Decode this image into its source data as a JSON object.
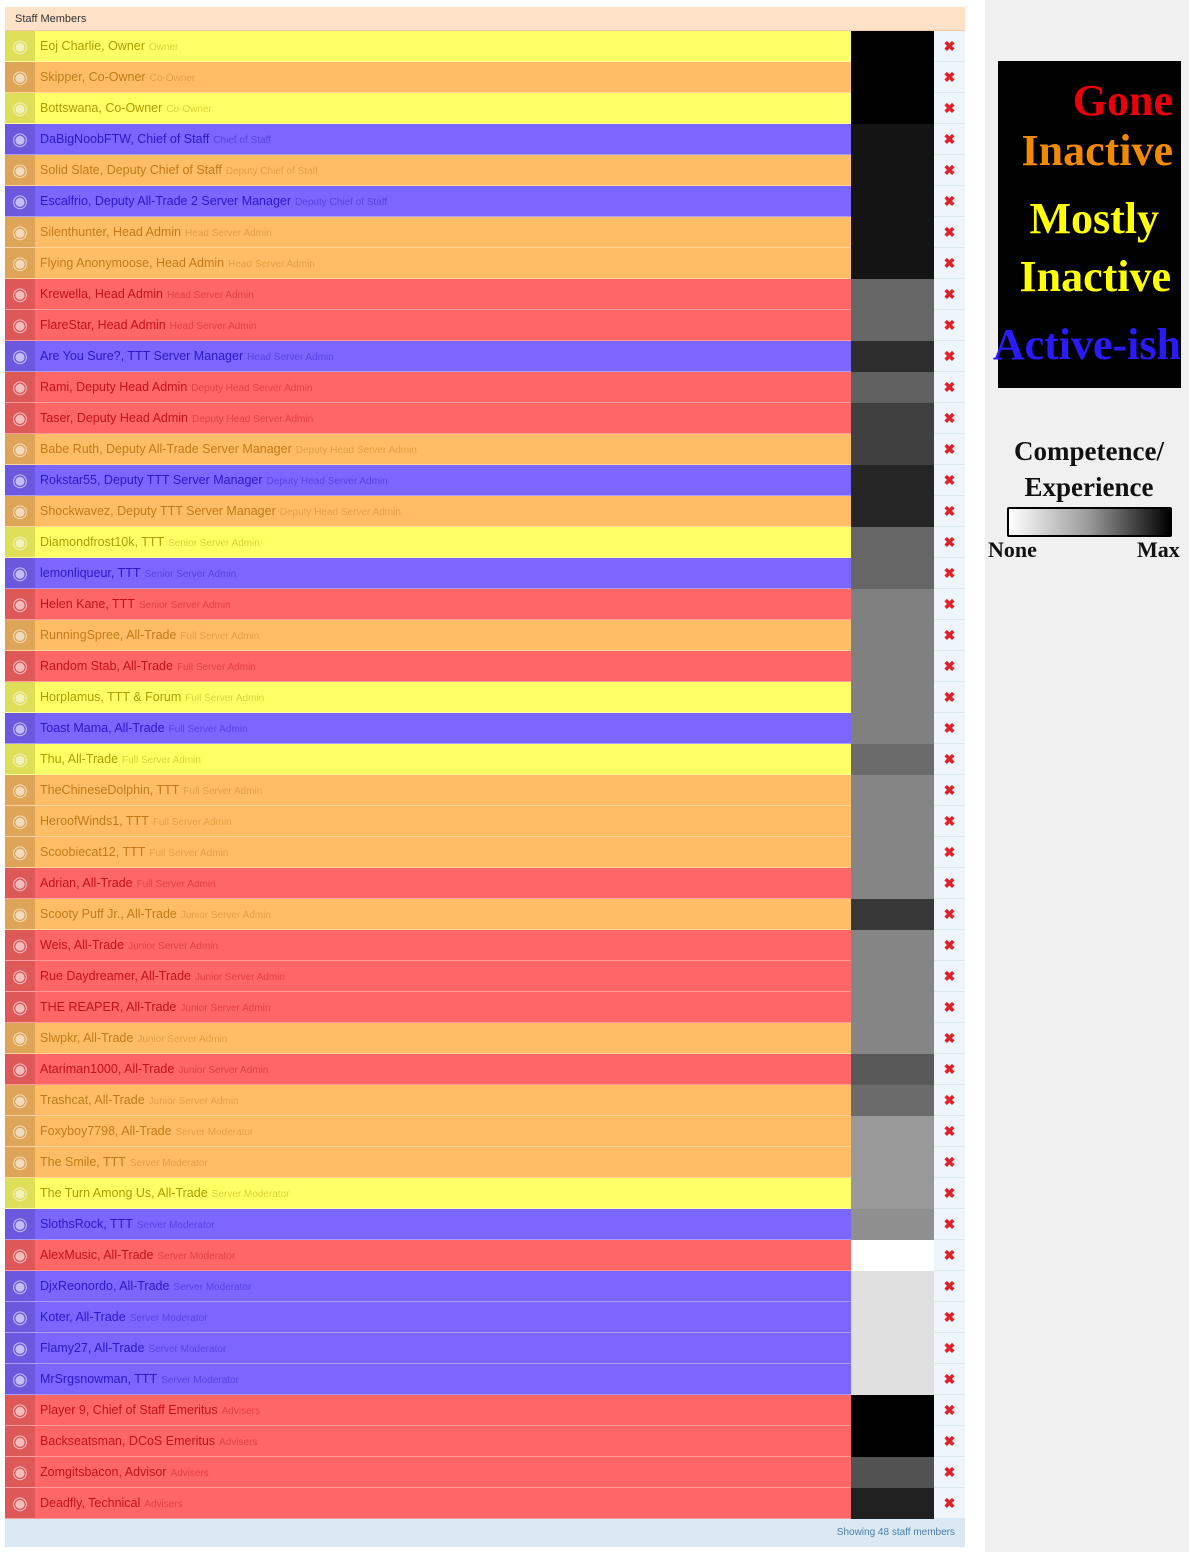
{
  "panel": {
    "title": "Staff Members",
    "footer": "Showing 48 staff members"
  },
  "status_colors": {
    "gone": "#ff6666",
    "inactive": "#ffbe66",
    "mostly": "#ffff66",
    "active": "#7b66ff"
  },
  "status_text_colors": {
    "gone": "#c2131a",
    "inactive": "#c47a18",
    "mostly": "#aaa000",
    "active": "#2b18c8"
  },
  "legend": {
    "gone": "Gone",
    "inactive": "Inactive",
    "mostly_line1": "Mostly",
    "mostly_line2": "Inactive",
    "active": "Active-ish",
    "competence_line1": "Competence/",
    "competence_line2": "Experience",
    "scale_min": "None",
    "scale_max": "Max"
  },
  "delete_icon": "close-icon",
  "staff": [
    {
      "name": "Eoj Charlie, Owner",
      "rank": "Owner",
      "status": "mostly",
      "competence": 1.0
    },
    {
      "name": "Skipper, Co-Owner",
      "rank": "Co-Owner",
      "status": "inactive",
      "competence": 1.0
    },
    {
      "name": "Bottswana, Co-Owner",
      "rank": "Co-Owner",
      "status": "mostly",
      "competence": 1.0
    },
    {
      "name": "DaBigNoobFTW, Chief of Staff",
      "rank": "Chief of Staff",
      "status": "active",
      "competence": 0.92
    },
    {
      "name": "Solid Slate, Deputy Chief of Staff",
      "rank": "Deputy Chief of Staff",
      "status": "inactive",
      "competence": 0.92
    },
    {
      "name": "Escalfrio, Deputy All-Trade 2 Server Manager",
      "rank": "Deputy Chief of Staff",
      "status": "active",
      "competence": 0.92
    },
    {
      "name": "Silenthunter, Head Admin",
      "rank": "Head Server Admin",
      "status": "inactive",
      "competence": 0.92
    },
    {
      "name": "Flying Anonymoose, Head Admin",
      "rank": "Head Server Admin",
      "status": "inactive",
      "competence": 0.92
    },
    {
      "name": "Krewella, Head Admin",
      "rank": "Head Server Admin",
      "status": "gone",
      "competence": 0.6
    },
    {
      "name": "FlareStar, Head Admin",
      "rank": "Head Server Admin",
      "status": "gone",
      "competence": 0.6
    },
    {
      "name": "Are You Sure?, TTT Server Manager",
      "rank": "Head Server Admin",
      "status": "active",
      "competence": 0.82
    },
    {
      "name": "Rami, Deputy Head Admin",
      "rank": "Deputy Head Server Admin",
      "status": "gone",
      "competence": 0.62
    },
    {
      "name": "Taser, Deputy Head Admin",
      "rank": "Deputy Head Server Admin",
      "status": "gone",
      "competence": 0.75
    },
    {
      "name": "Babe Ruth, Deputy All-Trade Server Manager",
      "rank": "Deputy Head Server Admin",
      "status": "inactive",
      "competence": 0.75
    },
    {
      "name": "Rokstar55, Deputy TTT Server Manager",
      "rank": "Deputy Head Server Admin",
      "status": "active",
      "competence": 0.85
    },
    {
      "name": "Shockwavez, Deputy TTT Server Manager",
      "rank": "Deputy Head Server Admin",
      "status": "inactive",
      "competence": 0.85
    },
    {
      "name": "Diamondfrost10k, TTT",
      "rank": "Senior Server Admin",
      "status": "mostly",
      "competence": 0.6
    },
    {
      "name": "lemonliqueur, TTT",
      "rank": "Senior Server Admin",
      "status": "active",
      "competence": 0.6
    },
    {
      "name": "Helen Kane, TTT",
      "rank": "Senior Server Admin",
      "status": "gone",
      "competence": 0.5
    },
    {
      "name": "RunningSpree, All-Trade",
      "rank": "Full Server Admin",
      "status": "inactive",
      "competence": 0.5
    },
    {
      "name": "Random Stab, All-Trade",
      "rank": "Full Server Admin",
      "status": "gone",
      "competence": 0.5
    },
    {
      "name": "Horplamus, TTT & Forum",
      "rank": "Full Server Admin",
      "status": "mostly",
      "competence": 0.5
    },
    {
      "name": "Toast Mama, All-Trade",
      "rank": "Full Server Admin",
      "status": "active",
      "competence": 0.5
    },
    {
      "name": "Thu, All-Trade",
      "rank": "Full Server Admin",
      "status": "mostly",
      "competence": 0.58
    },
    {
      "name": "TheChineseDolphin, TTT",
      "rank": "Full Server Admin",
      "status": "inactive",
      "competence": 0.48
    },
    {
      "name": "HeroofWinds1, TTT",
      "rank": "Full Server Admin",
      "status": "inactive",
      "competence": 0.48
    },
    {
      "name": "Scoobiecat12, TTT",
      "rank": "Full Server Admin",
      "status": "inactive",
      "competence": 0.48
    },
    {
      "name": "Adrian, All-Trade",
      "rank": "Full Server Admin",
      "status": "gone",
      "competence": 0.48
    },
    {
      "name": "Scooty Puff Jr., All-Trade",
      "rank": "Junior Server Admin",
      "status": "inactive",
      "competence": 0.78
    },
    {
      "name": "Weis, All-Trade",
      "rank": "Junior Server Admin",
      "status": "gone",
      "competence": 0.48
    },
    {
      "name": "Rue Daydreamer, All-Trade",
      "rank": "Junior Server Admin",
      "status": "gone",
      "competence": 0.48
    },
    {
      "name": "THE REAPER, All-Trade",
      "rank": "Junior Server Admin",
      "status": "gone",
      "competence": 0.48
    },
    {
      "name": "Slwpkr, All-Trade",
      "rank": "Junior Server Admin",
      "status": "inactive",
      "competence": 0.48
    },
    {
      "name": "Atariman1000, All-Trade",
      "rank": "Junior Server Admin",
      "status": "gone",
      "competence": 0.65
    },
    {
      "name": "Trashcat, All-Trade",
      "rank": "Junior Server Admin",
      "status": "inactive",
      "competence": 0.58
    },
    {
      "name": "Foxyboy7798, All-Trade",
      "rank": "Server Moderator",
      "status": "inactive",
      "competence": 0.4
    },
    {
      "name": "The Smile, TTT",
      "rank": "Server Moderator",
      "status": "inactive",
      "competence": 0.4
    },
    {
      "name": "The Turn Among Us, All-Trade",
      "rank": "Server Moderator",
      "status": "mostly",
      "competence": 0.4
    },
    {
      "name": "SlothsRock, TTT",
      "rank": "Server Moderator",
      "status": "active",
      "competence": 0.44
    },
    {
      "name": "AlexMusic, All-Trade",
      "rank": "Server Moderator",
      "status": "gone",
      "competence": 0.0
    },
    {
      "name": "DjxReonordo, All-Trade",
      "rank": "Server Moderator",
      "status": "active",
      "competence": 0.12
    },
    {
      "name": "Koter, All-Trade",
      "rank": "Server Moderator",
      "status": "active",
      "competence": 0.12
    },
    {
      "name": "Flamy27, All-Trade",
      "rank": "Server Moderator",
      "status": "active",
      "competence": 0.12
    },
    {
      "name": "MrSrgsnowman, TTT",
      "rank": "Server Moderator",
      "status": "active",
      "competence": 0.12
    },
    {
      "name": "Player 9, Chief of Staff Emeritus",
      "rank": "Advisers",
      "status": "gone",
      "competence": 1.0
    },
    {
      "name": "Backseatsman, DCoS Emeritus",
      "rank": "Advisers",
      "status": "gone",
      "competence": 1.0
    },
    {
      "name": "Zomgitsbacon, Advisor",
      "rank": "Advisers",
      "status": "gone",
      "competence": 0.68
    },
    {
      "name": "Deadfly, Technical",
      "rank": "Advisers",
      "status": "gone",
      "competence": 0.87
    }
  ]
}
